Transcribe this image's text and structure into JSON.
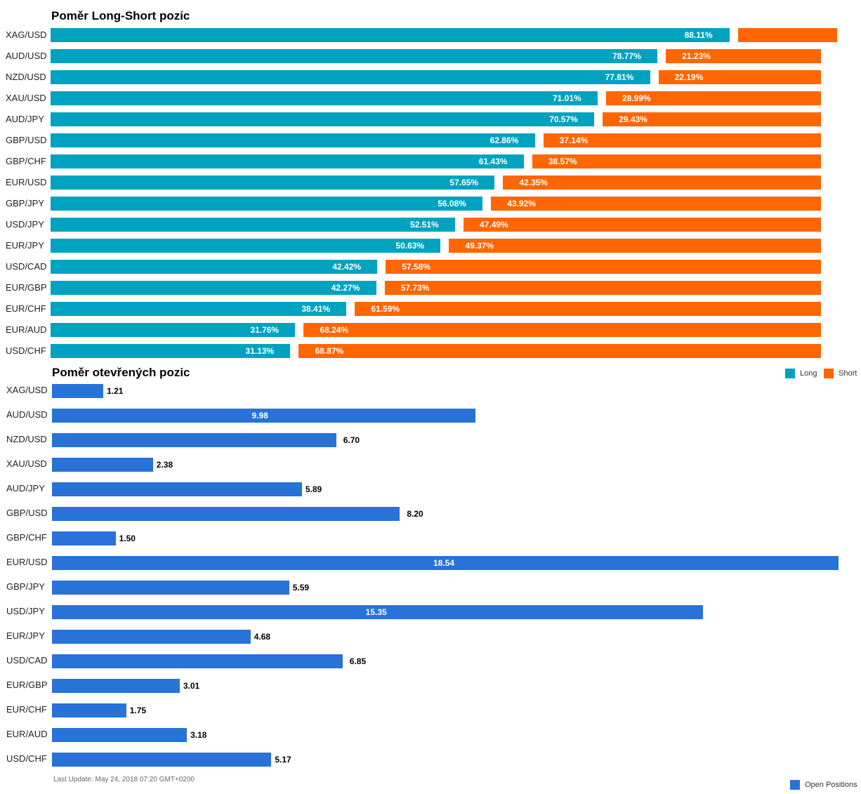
{
  "chart_data": [
    {
      "type": "bar",
      "orientation": "horizontal",
      "stacked": true,
      "title": "Poměr Long-Short pozic",
      "categories": [
        "XAG/USD",
        "AUD/USD",
        "NZD/USD",
        "XAU/USD",
        "AUD/JPY",
        "GBP/USD",
        "GBP/CHF",
        "EUR/USD",
        "GBP/JPY",
        "USD/JPY",
        "EUR/JPY",
        "USD/CAD",
        "EUR/GBP",
        "EUR/CHF",
        "EUR/AUD",
        "USD/CHF"
      ],
      "series": [
        {
          "name": "Long",
          "color": "#00a3bf",
          "values": [
            88.11,
            78.77,
            77.81,
            71.01,
            70.57,
            62.86,
            61.43,
            57.65,
            56.08,
            52.51,
            50.63,
            42.42,
            42.27,
            38.41,
            31.76,
            31.13
          ]
        },
        {
          "name": "Short",
          "color": "#ff6600",
          "values": [
            11.89,
            21.23,
            22.19,
            28.99,
            29.43,
            37.14,
            38.57,
            42.35,
            43.92,
            47.49,
            49.37,
            57.58,
            57.73,
            61.59,
            68.24,
            68.87
          ]
        }
      ],
      "value_labels": {
        "Long": [
          "88.11%",
          "78.77%",
          "77.81%",
          "71.01%",
          "70.57%",
          "62.86%",
          "61.43%",
          "57.65%",
          "56.08%",
          "52.51%",
          "50.63%",
          "42.42%",
          "42.27%",
          "38.41%",
          "31.76%",
          "31.13%"
        ],
        "Short": [
          "",
          "21.23%",
          "22.19%",
          "28.99%",
          "29.43%",
          "37.14%",
          "38.57%",
          "42.35%",
          "43.92%",
          "47.49%",
          "49.37%",
          "57.58%",
          "57.73%",
          "61.59%",
          "68.24%",
          "68.87%"
        ]
      },
      "xlim": [
        0,
        100
      ],
      "grid": false,
      "legend": {
        "position": "right",
        "entries": [
          "Long",
          "Short"
        ]
      }
    },
    {
      "type": "bar",
      "orientation": "horizontal",
      "title": "Poměr otevřených pozic",
      "categories": [
        "XAG/USD",
        "AUD/USD",
        "NZD/USD",
        "XAU/USD",
        "AUD/JPY",
        "GBP/USD",
        "GBP/CHF",
        "EUR/USD",
        "GBP/JPY",
        "USD/JPY",
        "EUR/JPY",
        "USD/CAD",
        "EUR/GBP",
        "EUR/CHF",
        "EUR/AUD",
        "USD/CHF"
      ],
      "series": [
        {
          "name": "Open Positions",
          "color": "#2872d8",
          "values": [
            1.21,
            9.98,
            6.7,
            2.38,
            5.89,
            8.2,
            1.5,
            18.54,
            5.59,
            15.35,
            4.68,
            6.85,
            3.01,
            1.75,
            3.18,
            5.17
          ]
        }
      ],
      "value_labels": [
        "1.21",
        "9.98",
        "6.70",
        "2.38",
        "5.89",
        "8.20",
        "1.50",
        "18.54",
        "5.59",
        "15.35",
        "4.68",
        "6.85",
        "3.01",
        "1.75",
        "3.18",
        "5.17"
      ],
      "xlim": [
        0,
        18.54
      ],
      "grid": false,
      "legend": {
        "position": "bottom-right",
        "entries": [
          "Open Positions"
        ]
      }
    }
  ],
  "legend": {
    "long_label": "Long",
    "short_label": "Short",
    "open_label": "Open Positions"
  },
  "footer": {
    "last_update": "Last Update: May 24, 2018 07:20 GMT+0200"
  }
}
